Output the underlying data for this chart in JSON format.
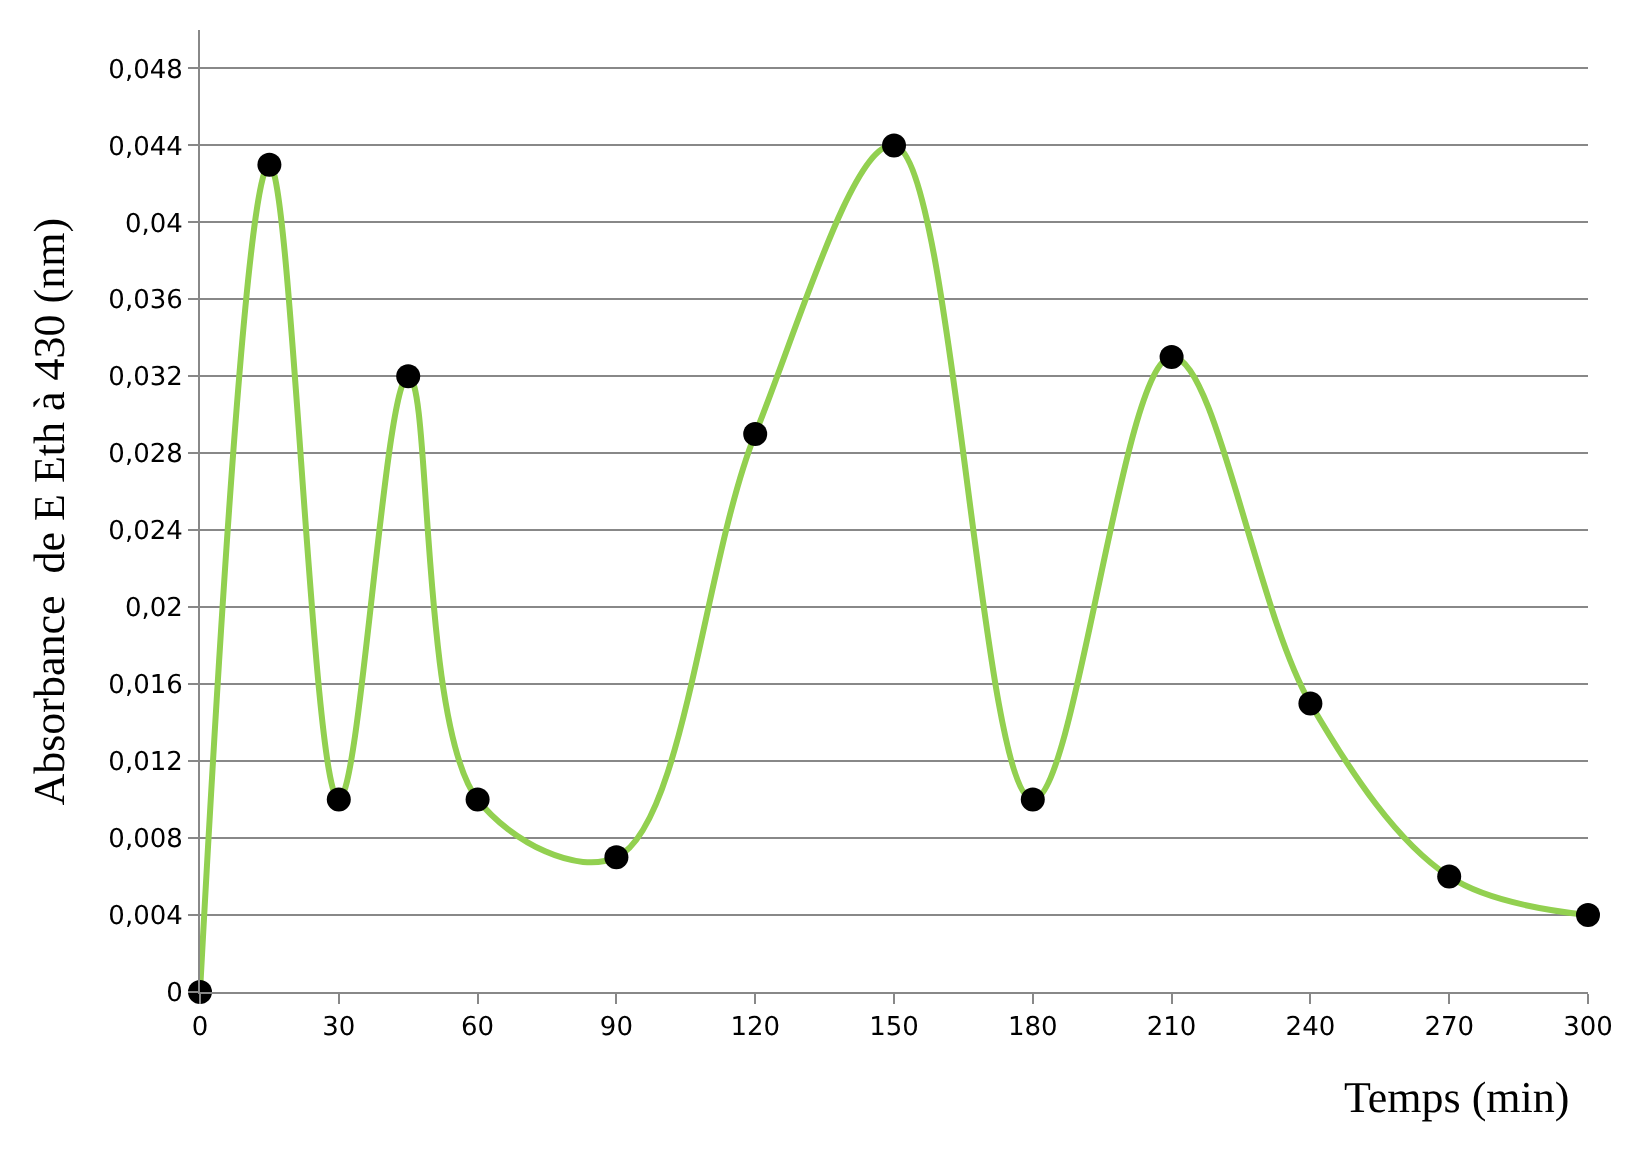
{
  "chart_data": {
    "type": "line",
    "xlabel": "Temps (min)",
    "ylabel": "Absorbance  de E Eth à 430 (nm)",
    "x": [
      0,
      15,
      30,
      45,
      60,
      90,
      120,
      150,
      180,
      210,
      240,
      270,
      300
    ],
    "series": [
      {
        "color": "#92d050",
        "colors": [
          "#000000",
          "#000000",
          "#000000",
          "#000000",
          "#000000",
          "#000000",
          "#000000",
          "#000000",
          "#000000",
          "#000000",
          "#000000",
          "#000000",
          "#000000"
        ],
        "values": [
          0,
          0.043,
          0.01,
          0.032,
          0.01,
          0.007,
          0.029,
          0.044,
          0.01,
          0.033,
          0.015,
          0.006,
          0.004
        ]
      }
    ],
    "xlim": [
      0,
      300
    ],
    "xticks": [
      0,
      30,
      60,
      90,
      120,
      150,
      180,
      210,
      240,
      270,
      300
    ],
    "ylim": [
      0,
      0.05
    ],
    "yticks": [
      0,
      {
        "value": 0.004,
        "label": "0,004"
      },
      {
        "value": 0.008,
        "label": "0,008"
      },
      {
        "value": 0.012,
        "label": "0,012"
      },
      {
        "value": 0.016,
        "label": "0,016"
      },
      {
        "value": 0.02,
        "label": "0,02"
      },
      {
        "value": 0.024,
        "label": "0,024"
      },
      {
        "value": 0.028,
        "label": "0,028"
      },
      {
        "value": 0.032,
        "label": "0,032"
      },
      {
        "value": 0.036,
        "label": "0,036"
      },
      {
        "value": 0.04,
        "label": "0,04"
      },
      {
        "value": 0.044,
        "label": "0,044"
      },
      {
        "value": 0.048,
        "label": "0,048"
      }
    ],
    "grid": "y",
    "marker": "circle",
    "legend": false
  }
}
